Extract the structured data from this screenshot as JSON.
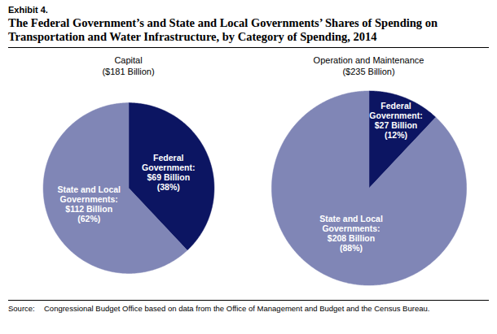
{
  "title": "Exhibit 4.",
  "subtitle": "The Federal Government’s and State and Local Governments’ Shares of Spending on Transportation and Water Infrastructure, by Category of Spending, 2014",
  "source_label": "Source:",
  "source": "Congressional Budget Office based on data from the Office of Management and Budget and the Census Bureau.",
  "chart_data": [
    {
      "type": "pie",
      "title": "Capital",
      "subtitle": "($181 Billion)",
      "categories": [
        "Federal Government:",
        "State and Local Governments:"
      ],
      "values": [
        69,
        112
      ],
      "value_labels": [
        "$69 Billion",
        "$112 Billion"
      ],
      "shares": [
        38,
        62
      ],
      "share_labels": [
        "(38%)",
        "(62%)"
      ],
      "colors": [
        "#0c1562",
        "#8086b6"
      ],
      "data_labels": true
    },
    {
      "type": "pie",
      "title": "Operation and Maintenance",
      "subtitle": "($235 Billion)",
      "categories": [
        "Federal Government:",
        "State and Local Governments:"
      ],
      "values": [
        27,
        208
      ],
      "value_labels": [
        "$27 Billion",
        "$208 Billion"
      ],
      "shares": [
        12,
        88
      ],
      "share_labels": [
        "(12%)",
        "(88%)"
      ],
      "colors": [
        "#0c1562",
        "#8086b6"
      ],
      "data_labels": true
    }
  ]
}
